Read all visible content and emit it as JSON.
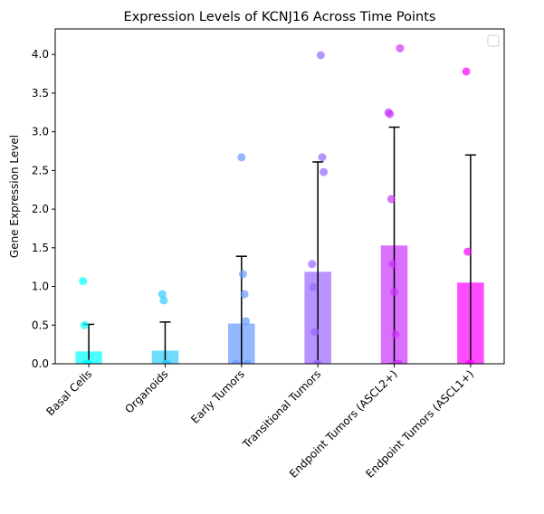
{
  "chart_data": {
    "type": "bar",
    "title": "Expression Levels of KCNJ16 Across Time Points",
    "y_label": "Gene Expression Level",
    "categories": [
      "Basal Cells",
      "Organoids",
      "Early Tumors",
      "Transitional Tumors",
      "Endpoint Tumors (ASCL2+)",
      "Endpoint Tumors (ASCL1+)"
    ],
    "values": [
      0.16,
      0.17,
      0.52,
      1.19,
      1.53,
      1.05
    ],
    "errors": [
      0.35,
      0.37,
      0.87,
      1.42,
      1.53,
      1.65
    ],
    "colors": [
      "#00ffff",
      "#33ccff",
      "#6699ff",
      "#9966ff",
      "#cc33ff",
      "#ff00ff"
    ],
    "points": [
      [
        1.07,
        0.5,
        0,
        0,
        0
      ],
      [
        0.9,
        0.82,
        0,
        0,
        0
      ],
      [
        2.67,
        1.16,
        0.9,
        0.55,
        0,
        0
      ],
      [
        3.99,
        2.67,
        2.48,
        1.29,
        0.99,
        0.41,
        0,
        0
      ],
      [
        4.08,
        3.25,
        3.23,
        2.13,
        1.29,
        0.93,
        0.38,
        0,
        0
      ],
      [
        3.78,
        1.45,
        0,
        0
      ]
    ],
    "xlim": [
      -0.44,
      5.44
    ],
    "ylim": [
      0,
      4.33
    ],
    "yticks": [
      {
        "value": 0,
        "label": "0.0"
      },
      {
        "value": 0.5,
        "label": "0.5"
      },
      {
        "value": 1,
        "label": "1.0"
      },
      {
        "value": 1.5,
        "label": "1.5"
      },
      {
        "value": 2,
        "label": "2.0"
      },
      {
        "value": 2.5,
        "label": "2.5"
      },
      {
        "value": 3,
        "label": "3.0"
      },
      {
        "value": 3.5,
        "label": "3.5"
      },
      {
        "value": 4,
        "label": "4.0"
      }
    ],
    "legend": "upper right"
  }
}
